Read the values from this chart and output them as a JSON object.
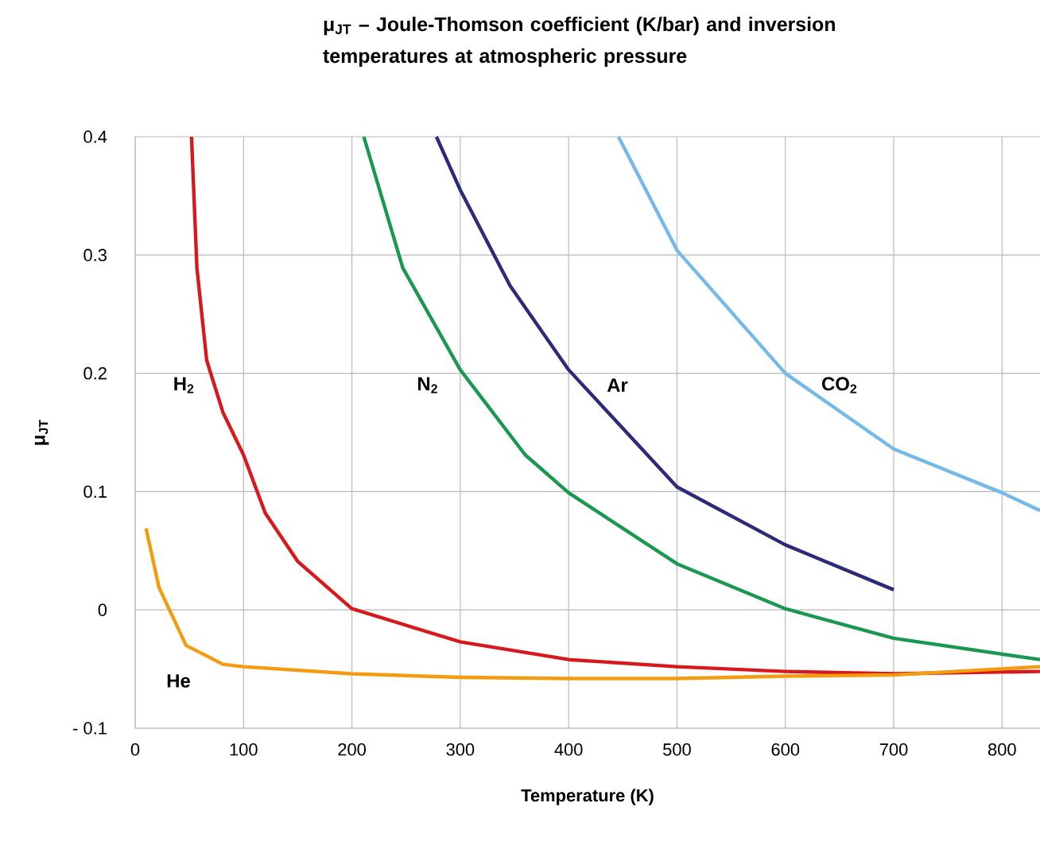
{
  "chart_data": {
    "type": "line",
    "title": "μ$_{JT}$ – Joule-Thomson coefficient (K/bar) and inversion temperatures at atmospheric pressure",
    "xlabel": "Temperature (K)",
    "ylabel": "μ$_{JT}$",
    "xlim": [
      0,
      835
    ],
    "ylim": [
      -0.1,
      0.4
    ],
    "xticks": [
      0,
      100,
      200,
      300,
      400,
      500,
      600,
      700,
      800
    ],
    "yticks": [
      {
        "value": -0.1,
        "label": "- 0.1"
      },
      0,
      0.1,
      0.2,
      0.3,
      0.4
    ],
    "grid": true,
    "legend": false,
    "marker": "none",
    "line_style": "solid",
    "series": [
      {
        "name": "H$_{2}$",
        "color": "#d7191c",
        "x": [
          52,
          57,
          66,
          81,
          100,
          120,
          150,
          200,
          300,
          400,
          500,
          600,
          700,
          835
        ],
        "values": [
          0.4,
          0.289,
          0.211,
          0.167,
          0.131,
          0.082,
          0.041,
          0.001,
          -0.027,
          -0.042,
          -0.048,
          -0.052,
          -0.054,
          -0.052
        ]
      },
      {
        "name": "N$_{2}$",
        "color": "#1a9850",
        "x": [
          211,
          247,
          300,
          360,
          400,
          500,
          600,
          700,
          835
        ],
        "values": [
          0.4,
          0.289,
          0.203,
          0.131,
          0.099,
          0.039,
          0.001,
          -0.024,
          -0.042
        ]
      },
      {
        "name": "Ar",
        "color": "#2d2a7a",
        "x": [
          278,
          300,
          346,
          400,
          500,
          600,
          700
        ],
        "values": [
          0.4,
          0.355,
          0.274,
          0.203,
          0.104,
          0.055,
          0.017
        ]
      },
      {
        "name": "CO$_{2}$",
        "color": "#74b9e7",
        "x": [
          446,
          500,
          600,
          700,
          800,
          835
        ],
        "values": [
          0.4,
          0.304,
          0.2,
          0.136,
          0.099,
          0.084
        ]
      },
      {
        "name": "He",
        "color": "#f39c12",
        "x": [
          10,
          22,
          47,
          81,
          100,
          200,
          300,
          400,
          500,
          600,
          700,
          835
        ],
        "values": [
          0.069,
          0.019,
          -0.03,
          -0.046,
          -0.048,
          -0.054,
          -0.057,
          -0.058,
          -0.058,
          -0.056,
          -0.055,
          -0.048
        ]
      }
    ]
  }
}
